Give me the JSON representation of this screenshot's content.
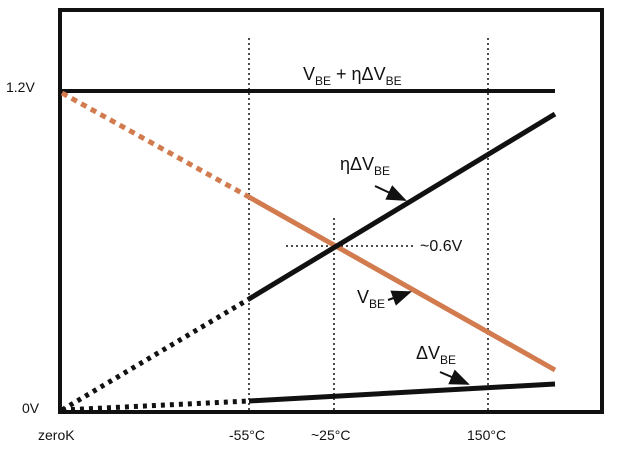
{
  "colors": {
    "frame": "#111111",
    "vbe_line": "#d27b4f",
    "black_line": "#111111"
  },
  "labels": {
    "y_top": "1.2V",
    "y_bottom": "0V",
    "x_zero": "zeroK",
    "x_minus55": "-55°C",
    "x_25": "~25°C",
    "x_150": "150°C",
    "crossing": "~0.6V",
    "sum": {
      "base": "V",
      "sub": "BE",
      "mid": " + ηΔV",
      "sub2": "BE"
    },
    "eta_dvbe": {
      "base": "ηΔV",
      "sub": "BE"
    },
    "vbe": {
      "base": "V",
      "sub": "BE"
    },
    "dvbe": {
      "base": "ΔV",
      "sub": "BE"
    }
  },
  "chart_data": {
    "type": "line",
    "x_ticks": [
      "zeroK",
      "-55°C",
      "~25°C",
      "150°C"
    ],
    "y_ticks": [
      "0V",
      "1.2V"
    ],
    "series": [
      {
        "name": "VBE + ηΔVBE",
        "color": "#111111",
        "points": [
          [
            0,
            1.2
          ],
          [
            1,
            1.2
          ]
        ]
      },
      {
        "name": "ηΔVBE",
        "color": "#111111",
        "dashed_until": "-55°C",
        "points": [
          [
            0,
            0.0
          ],
          [
            1,
            1.12
          ]
        ]
      },
      {
        "name": "VBE",
        "color": "#d27b4f",
        "dashed_until": "-55°C",
        "points": [
          [
            0,
            1.2
          ],
          [
            1,
            0.15
          ]
        ]
      },
      {
        "name": "ΔVBE",
        "color": "#111111",
        "dashed_until": "-55°C",
        "points": [
          [
            0,
            0.0
          ],
          [
            1,
            0.09
          ]
        ]
      }
    ],
    "annotations": [
      "~0.6V"
    ]
  }
}
